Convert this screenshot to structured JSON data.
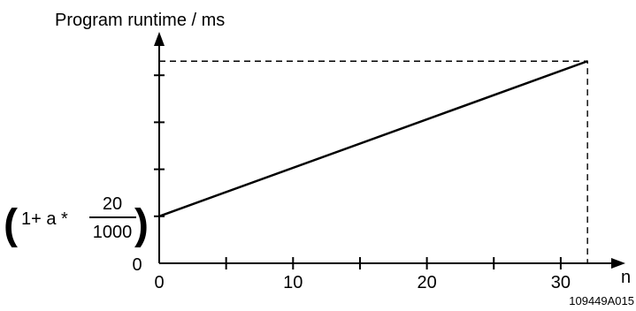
{
  "chart_data": {
    "type": "line",
    "ylabel": "Program runtime / ms",
    "xlabel": "n",
    "x_tick_labels": [
      "0",
      "10",
      "20",
      "30"
    ],
    "x_minor_ticks": [
      5,
      15,
      25
    ],
    "xlim": [
      0,
      35
    ],
    "y_zero_label": "0",
    "y_intercept_label": {
      "prefix": "1+ a *",
      "numerator": "20",
      "denominator": "1000"
    },
    "series": [
      {
        "x": [
          0,
          32
        ],
        "y": [
          1,
          4.3
        ]
      }
    ],
    "y_ticks": [
      1,
      2,
      3,
      4
    ],
    "ylim": [
      0,
      5
    ],
    "reference_point": {
      "x": 32,
      "y": 4.3
    },
    "figure_code": "109449A015"
  }
}
